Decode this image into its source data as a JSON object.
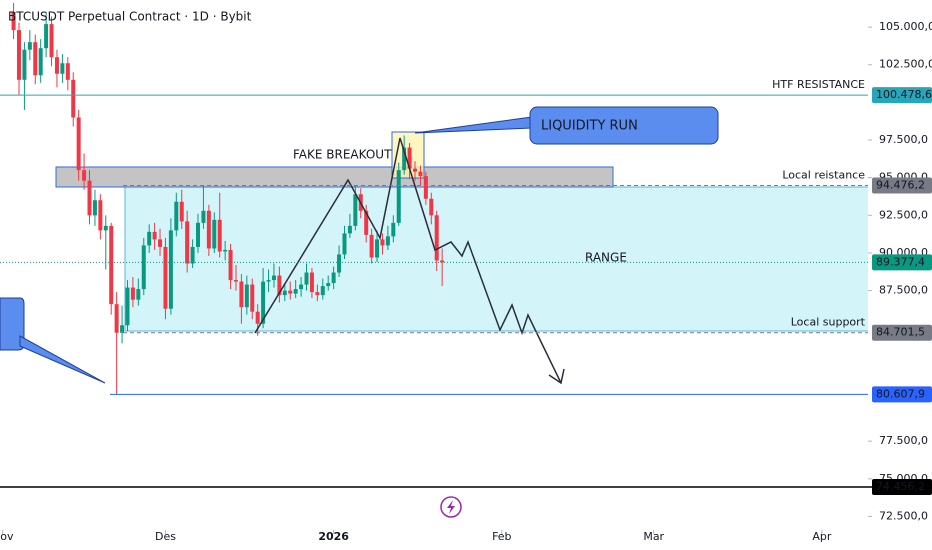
{
  "chart_data": {
    "type": "candlestick",
    "title": "BTCUSDT Perpetual Contract · 1D · Bybit",
    "up_color": "#089981",
    "down_color": "#f23645",
    "xlim": [
      -2.5,
      157.5
    ],
    "ylim": [
      71600,
      106800
    ],
    "xticks": [
      {
        "value": -2,
        "label": "Nov"
      },
      {
        "value": 28,
        "label": "Des"
      },
      {
        "value": 59,
        "label": "2026"
      },
      {
        "value": 90,
        "label": "Feb"
      },
      {
        "value": 118,
        "label": "Mar"
      },
      {
        "value": 149,
        "label": "Apr"
      }
    ],
    "yticks": [
      {
        "value": 105000,
        "label": "105.000,0"
      },
      {
        "value": 102500,
        "label": "102.500,0"
      },
      {
        "value": 97500,
        "label": "97.500,0"
      },
      {
        "value": 95000,
        "label": "95.000,0"
      },
      {
        "value": 92500,
        "label": "92.500,0"
      },
      {
        "value": 90000,
        "label": "90.000,0"
      },
      {
        "value": 87500,
        "label": "87.500,0"
      },
      {
        "value": 77500,
        "label": "77.500,0"
      },
      {
        "value": 75000,
        "label": "75.000,0"
      },
      {
        "value": 72500,
        "label": "72.500,0"
      }
    ],
    "open": [
      106000,
      104800,
      101500,
      103500,
      104000,
      101800,
      103600,
      105200,
      103000,
      101900,
      102600,
      101500,
      99000,
      95500,
      94800,
      92500,
      93500,
      91500,
      91800,
      86600,
      84700,
      85200,
      87700,
      86900,
      87600,
      90500,
      91400,
      90900,
      90400,
      86300,
      91500,
      93400,
      92100,
      89300,
      90400,
      92000,
      92800,
      90300,
      92200,
      90100,
      90200,
      88200,
      88100,
      86400,
      87900,
      86100,
      85300,
      88100,
      88200,
      88500,
      87200,
      87500,
      87300,
      87600,
      87900,
      88700,
      87400,
      87200,
      87800,
      88000,
      88700,
      89900,
      91300,
      91800,
      93900,
      92800,
      91200,
      89700,
      90900,
      90500,
      91100,
      92000,
      95500,
      97000,
      95600,
      95400,
      95100,
      93600,
      92500,
      89500
    ],
    "high": [
      106600,
      105300,
      104000,
      104800,
      104500,
      104200,
      106000,
      105700,
      103500,
      103200,
      103000,
      102000,
      99500,
      96600,
      95500,
      94200,
      93900,
      92500,
      92000,
      87400,
      86500,
      88200,
      88400,
      88300,
      91000,
      91900,
      92000,
      91600,
      91000,
      92300,
      94000,
      94200,
      92800,
      90900,
      92600,
      94500,
      93200,
      92700,
      94000,
      90800,
      90600,
      89200,
      88600,
      88500,
      88300,
      86600,
      89000,
      88900,
      89300,
      89100,
      88000,
      88100,
      88200,
      88400,
      89300,
      89000,
      87900,
      88300,
      88500,
      89100,
      90500,
      91800,
      92600,
      94500,
      94300,
      93200,
      91600,
      91500,
      91300,
      91800,
      92500,
      96000,
      97800,
      97300,
      96100,
      95800,
      95400,
      94000,
      92800,
      90300
    ],
    "low": [
      104200,
      100500,
      99500,
      102800,
      101200,
      101300,
      103000,
      102400,
      101000,
      101300,
      100800,
      98400,
      94800,
      94200,
      91900,
      91800,
      90900,
      88900,
      85900,
      80600,
      84000,
      84800,
      86400,
      86500,
      87200,
      90000,
      90200,
      89800,
      85600,
      85900,
      91100,
      91600,
      88700,
      89000,
      90000,
      91600,
      89800,
      90000,
      89700,
      89500,
      87600,
      87500,
      85300,
      85900,
      85600,
      84500,
      85000,
      87400,
      87700,
      86700,
      86800,
      86900,
      87000,
      87100,
      87500,
      87000,
      86800,
      86900,
      87500,
      87600,
      88400,
      89600,
      91000,
      91500,
      92300,
      90700,
      89300,
      89400,
      89900,
      90200,
      90700,
      91800,
      95200,
      94900,
      94800,
      94500,
      93200,
      91900,
      88800,
      87800
    ],
    "close": [
      104800,
      101500,
      103500,
      104000,
      101800,
      103600,
      105200,
      103000,
      101900,
      102600,
      101500,
      99000,
      95500,
      94800,
      92500,
      93500,
      91500,
      91800,
      86600,
      84700,
      85200,
      87700,
      86900,
      87600,
      90500,
      91400,
      90900,
      90400,
      86300,
      91500,
      93400,
      92100,
      89300,
      90400,
      92000,
      92800,
      90300,
      92200,
      90100,
      90200,
      88200,
      88100,
      86400,
      87900,
      86100,
      85300,
      88100,
      88200,
      88500,
      87200,
      87500,
      87300,
      87600,
      87900,
      88700,
      87400,
      87200,
      87800,
      88000,
      88700,
      89900,
      91300,
      91800,
      93900,
      92800,
      91200,
      89700,
      90900,
      90500,
      91100,
      92000,
      95500,
      97000,
      95600,
      95400,
      95100,
      93600,
      92500,
      89500,
      89377.4
    ],
    "levels": [
      {
        "value": 100478.6,
        "label": "100.478,6",
        "color": "#26a6b8",
        "name": "HTF RESISTANCE"
      },
      {
        "value": 94476.2,
        "label": "94.476,2",
        "color": "#787b86",
        "name": "Local reistance"
      },
      {
        "value": 89377.4,
        "label": "89.377,4",
        "color": "#089981"
      },
      {
        "value": 84701.5,
        "label": "84.701,5",
        "color": "#787b86",
        "name": "Local support"
      },
      {
        "value": 80607.9,
        "label": "80.607,9",
        "color": "#2962ff"
      },
      {
        "value": 74456.2,
        "label": "74.456,2",
        "color": "#000000"
      }
    ],
    "annotations": [
      "FAKE BREAKOUT",
      "LIQUIDITY RUN",
      "RANGE"
    ]
  }
}
